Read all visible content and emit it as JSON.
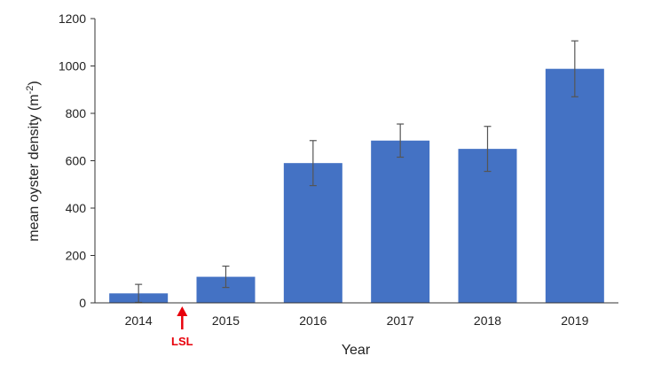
{
  "chart_data": {
    "type": "bar",
    "categories": [
      "2014",
      "2015",
      "2016",
      "2017",
      "2018",
      "2019"
    ],
    "values": [
      40,
      110,
      590,
      685,
      650,
      988
    ],
    "error": [
      38,
      45,
      95,
      70,
      95,
      118
    ],
    "xlabel": "Year",
    "ylabel": "mean oyster density (m",
    "ylabel_sup": "-2",
    "ylabel_end": ")",
    "ylim": [
      0,
      1200
    ],
    "yticks": [
      0,
      200,
      400,
      600,
      800,
      1000,
      1200
    ],
    "grid": false,
    "bar_color": "#4472C4",
    "error_color": "#555555",
    "annotation": {
      "text": "LSL",
      "between": [
        "2014",
        "2015"
      ],
      "color": "#E8000B",
      "marker": "up-arrow"
    }
  }
}
